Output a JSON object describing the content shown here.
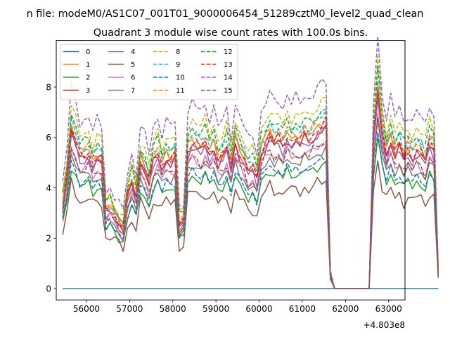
{
  "figure": {
    "suptitle": "n file: modeM0/AS1C07_001T01_9000006454_51289cztM0_level2_quad_clean",
    "title": "Quadrant 3 module wise count rates with 100.0s bins."
  },
  "chart_data": {
    "type": "line",
    "title": "Quadrant 3 module wise count rates with 100.0s bins.",
    "xlabel": "",
    "ylabel": "",
    "x_offset_label": "+4.803e8",
    "xlim": [
      55300,
      63380
    ],
    "ylim": [
      -0.45,
      9.85
    ],
    "xticks": [
      56000,
      57000,
      58000,
      59000,
      60000,
      61000,
      62000,
      63000
    ],
    "xtick_labels": [
      "56000",
      "57000",
      "58000",
      "59000",
      "60000",
      "61000",
      "62000",
      "63000"
    ],
    "yticks": [
      0,
      2,
      4,
      6,
      8
    ],
    "ytick_labels": [
      "0",
      "2",
      "4",
      "6",
      "8"
    ],
    "grid": false,
    "legend_position": "upper-left",
    "legend_columns": 4,
    "x_start": 55450,
    "x_step": 100,
    "profile": [
      0.46,
      0.62,
      0.87,
      0.8,
      0.72,
      0.73,
      0.75,
      0.68,
      0.72,
      0.7,
      0.42,
      0.44,
      0.4,
      0.36,
      0.33,
      0.5,
      0.58,
      0.5,
      0.7,
      0.66,
      0.58,
      0.7,
      0.74,
      0.67,
      0.72,
      0.7,
      0.72,
      0.35,
      0.38,
      0.76,
      0.8,
      0.78,
      0.76,
      0.8,
      0.74,
      0.78,
      0.7,
      0.72,
      0.77,
      0.66,
      0.8,
      0.74,
      0.7,
      0.64,
      0.66,
      0.6,
      0.76,
      0.8,
      0.84,
      0.8,
      0.82,
      0.78,
      0.84,
      0.8,
      0.82,
      0.8,
      0.84,
      0.82,
      0.84,
      0.86,
      0.88,
      0.9,
      0.08,
      0.0,
      0.0,
      0.0,
      0.0,
      0.0,
      0.0,
      0.0,
      0.0,
      0.0,
      0.8,
      1.08,
      0.85,
      0.74,
      0.82,
      0.74,
      0.78,
      0.72,
      0.76,
      0.72,
      0.76,
      0.74,
      0.7,
      0.8,
      0.76,
      0.09
    ],
    "series": [
      {
        "name": "0",
        "color": "#1f77b4",
        "dashed": false,
        "level": 0.0,
        "wiggle": 0.0
      },
      {
        "name": "1",
        "color": "#ff7f0e",
        "dashed": false,
        "level": 7.35,
        "wiggle": 0.25
      },
      {
        "name": "2",
        "color": "#2ca02c",
        "dashed": false,
        "level": 5.6,
        "wiggle": 0.22
      },
      {
        "name": "3",
        "color": "#d62728",
        "dashed": false,
        "level": 7.1,
        "wiggle": 0.25
      },
      {
        "name": "4",
        "color": "#9467bd",
        "dashed": false,
        "level": 7.0,
        "wiggle": 0.25
      },
      {
        "name": "5",
        "color": "#8c564b",
        "dashed": false,
        "level": 4.8,
        "wiggle": 0.3
      },
      {
        "name": "6",
        "color": "#e377c2",
        "dashed": false,
        "level": 6.5,
        "wiggle": 0.22
      },
      {
        "name": "7",
        "color": "#7f7f7f",
        "dashed": false,
        "level": 6.2,
        "wiggle": 0.22
      },
      {
        "name": "8",
        "color": "#bcbd22",
        "dashed": true,
        "level": 8.4,
        "wiggle": 0.25
      },
      {
        "name": "9",
        "color": "#17becf",
        "dashed": true,
        "level": 7.7,
        "wiggle": 0.25
      },
      {
        "name": "10",
        "color": "#1f77b4",
        "dashed": true,
        "level": 5.8,
        "wiggle": 0.2
      },
      {
        "name": "11",
        "color": "#ff7f0e",
        "dashed": true,
        "level": 7.6,
        "wiggle": 0.25
      },
      {
        "name": "12",
        "color": "#2ca02c",
        "dashed": true,
        "level": 8.0,
        "wiggle": 0.25
      },
      {
        "name": "13",
        "color": "#d62728",
        "dashed": true,
        "level": 7.3,
        "wiggle": 0.25
      },
      {
        "name": "14",
        "color": "#9467bd",
        "dashed": true,
        "level": 9.2,
        "wiggle": 0.3
      },
      {
        "name": "15",
        "color": "#8c564b",
        "dashed": true,
        "level": 6.5,
        "wiggle": 0.25
      }
    ]
  }
}
